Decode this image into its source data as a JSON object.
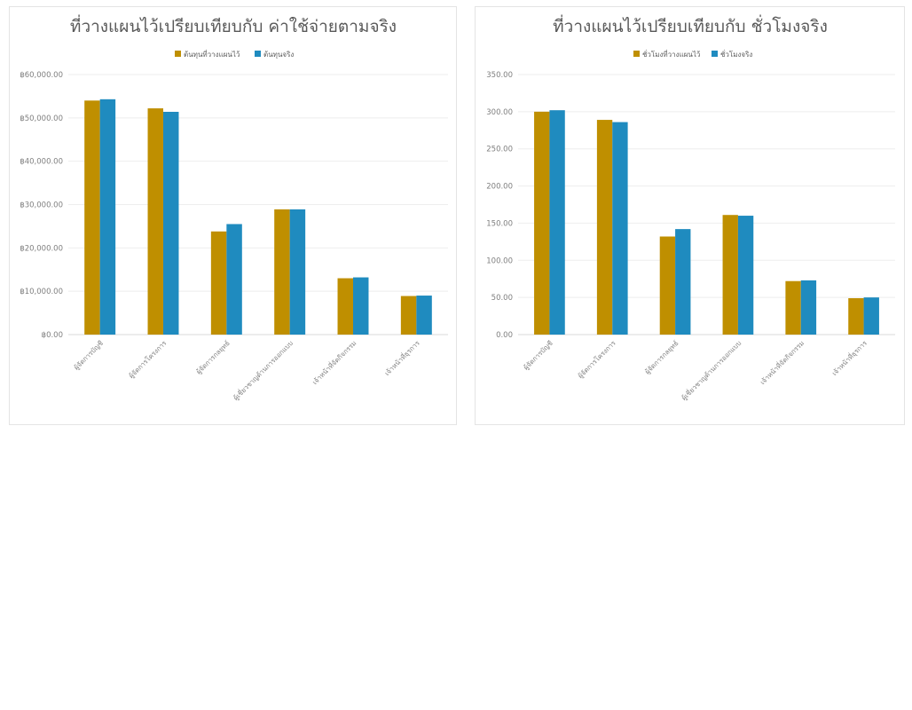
{
  "charts": [
    {
      "id": "cost",
      "title": "ที่วางแผนไว้เปรียบเทียบกับ ค่าใช้จ่ายตามจริง",
      "legend": [
        "ต้นทุนที่วางแผนไว้",
        "ต้นทุนจริง"
      ]
    },
    {
      "id": "hours",
      "title": "ที่วางแผนไว้เปรียบเทียบกับ ชั่วโมงจริง",
      "legend": [
        "ชั่วโมงที่วางแผนไว้",
        "ชั่วโมงจริง"
      ]
    }
  ],
  "colors": {
    "planned": "#BF8F00",
    "actual": "#1F8BBF",
    "grid": "#eeeeee",
    "axis": "#d9d9d9"
  },
  "chart_data": [
    {
      "type": "bar",
      "title": "ที่วางแผนไว้เปรียบเทียบกับ ค่าใช้จ่ายตามจริง",
      "categories": [
        "ผู้จัดการบัญชี",
        "ผู้จัดการโครงการ",
        "ผู้จัดการกลยุทธ์",
        "ผู้เชี่ยวชาญด้านการออกแบบ",
        "เจ้าหน้าที่จัดกิจกรรม",
        "เจ้าหน้าที่ธุรการ"
      ],
      "series": [
        {
          "name": "ต้นทุนที่วางแผนไว้",
          "values": [
            54000,
            52200,
            23800,
            28900,
            13000,
            8900
          ]
        },
        {
          "name": "ต้นทุนจริง",
          "values": [
            54300,
            51400,
            25500,
            28900,
            13200,
            9000
          ]
        }
      ],
      "ylim": [
        0,
        60000
      ],
      "yticks": [
        "฿0.00",
        "฿10,000.00",
        "฿20,000.00",
        "฿30,000.00",
        "฿40,000.00",
        "฿50,000.00",
        "฿60,000.00"
      ],
      "grid": true,
      "legend_position": "top"
    },
    {
      "type": "bar",
      "title": "ที่วางแผนไว้เปรียบเทียบกับ ชั่วโมงจริง",
      "categories": [
        "ผู้จัดการบัญชี",
        "ผู้จัดการโครงการ",
        "ผู้จัดการกลยุทธ์",
        "ผู้เชี่ยวชาญด้านการออกแบบ",
        "เจ้าหน้าที่จัดกิจกรรม",
        "เจ้าหน้าที่ธุรการ"
      ],
      "series": [
        {
          "name": "ชั่วโมงที่วางแผนไว้",
          "values": [
            300,
            289,
            132,
            161,
            72,
            49
          ]
        },
        {
          "name": "ชั่วโมงจริง",
          "values": [
            302,
            286,
            142,
            160,
            73,
            50
          ]
        }
      ],
      "ylim": [
        0,
        350
      ],
      "yticks": [
        "0.00",
        "50.00",
        "100.00",
        "150.00",
        "200.00",
        "250.00",
        "300.00",
        "350.00"
      ],
      "grid": true,
      "legend_position": "top"
    }
  ]
}
